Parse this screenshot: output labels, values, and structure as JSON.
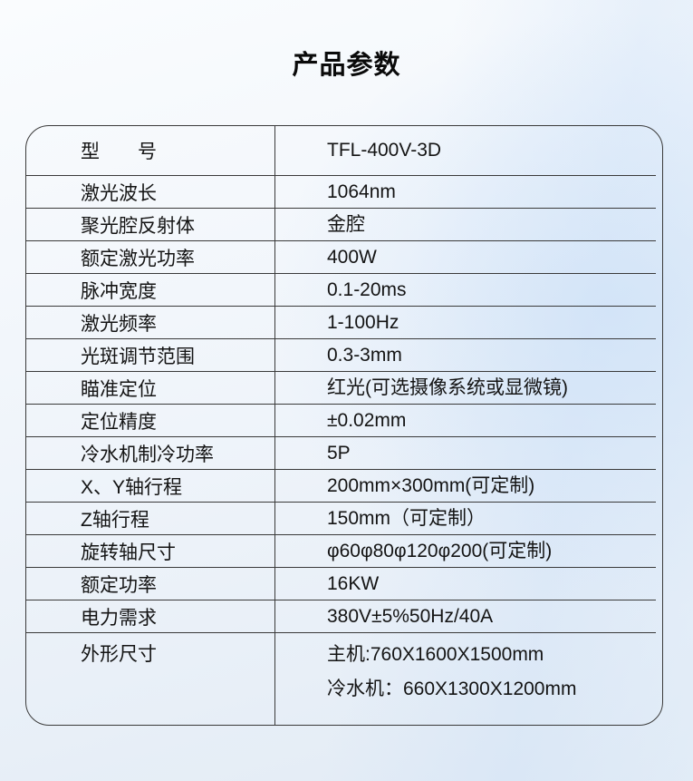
{
  "page": {
    "title": "产品参数"
  },
  "colors": {
    "table_border": "#3a3a3a",
    "text": "#141414",
    "background_tint": "#e2ebf5"
  },
  "table": {
    "model_name": "TFL-400V-3D",
    "rows": [
      {
        "label": "型　　号",
        "values": [
          "TFL-400V-3D"
        ]
      },
      {
        "label": "激光波长",
        "values": [
          "1064nm"
        ]
      },
      {
        "label": "聚光腔反射体",
        "values": [
          "金腔"
        ]
      },
      {
        "label": "额定激光功率",
        "values": [
          "400W"
        ]
      },
      {
        "label": "脉冲宽度",
        "values": [
          "0.1-20ms"
        ]
      },
      {
        "label": "激光频率",
        "values": [
          "1-100Hz"
        ]
      },
      {
        "label": "光斑调节范围",
        "values": [
          "0.3-3mm"
        ]
      },
      {
        "label": "瞄准定位",
        "values": [
          "红光(可选摄像系统或显微镜)"
        ]
      },
      {
        "label": "定位精度",
        "values": [
          "±0.02mm"
        ]
      },
      {
        "label": "冷水机制冷功率",
        "values": [
          "5P"
        ]
      },
      {
        "label": "X、Y轴行程",
        "values": [
          "200mm×300mm(可定制)"
        ]
      },
      {
        "label": "Z轴行程",
        "values": [
          "150mm（可定制）"
        ]
      },
      {
        "label": "旋转轴尺寸",
        "values": [
          "φ60φ80φ120φ200(可定制)"
        ]
      },
      {
        "label": "额定功率",
        "values": [
          "16KW"
        ]
      },
      {
        "label": "电力需求",
        "values": [
          "380V±5%50Hz/40A"
        ]
      },
      {
        "label": "外形尺寸",
        "values": [
          "主机:760X1600X1500mm",
          "冷水机：660X1300X1200mm"
        ]
      }
    ]
  }
}
